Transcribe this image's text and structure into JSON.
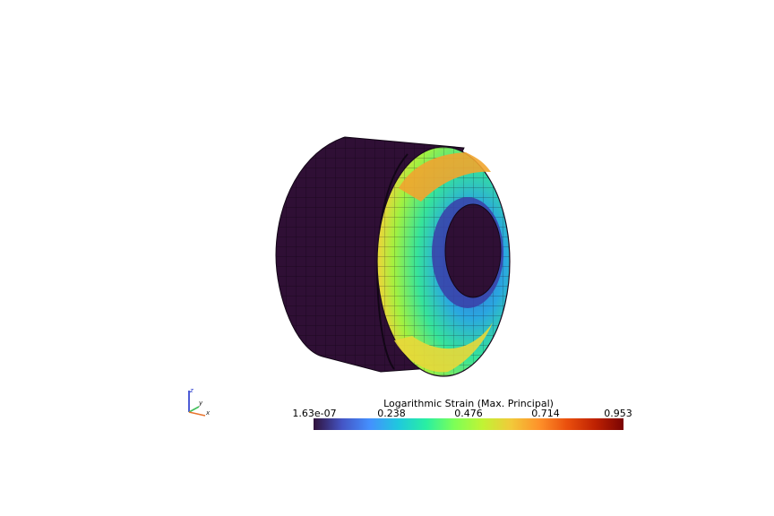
{
  "scalar_bar": {
    "title": "Logarithmic Strain (Max. Principal)",
    "ticks": [
      "1.63e-07",
      "0.238",
      "0.476",
      "0.714",
      "0.953"
    ],
    "range": [
      1.63e-07,
      0.953
    ],
    "colors": [
      "#30123b",
      "#4454c4",
      "#4490fe",
      "#1fc8de",
      "#29efa2",
      "#7dff56",
      "#c1f334",
      "#f1ca3a",
      "#fe922a",
      "#ea4f0d",
      "#be2102",
      "#7a0403"
    ]
  },
  "orientation_axes": {
    "x_label": "x",
    "y_label": "y",
    "z_label": "z",
    "x_color": "#e8742e",
    "y_color": "#3fbf5a",
    "z_color": "#2233cc"
  },
  "model": {
    "outer_color": "#2f0f35",
    "mesh_line_color": "#120616"
  }
}
